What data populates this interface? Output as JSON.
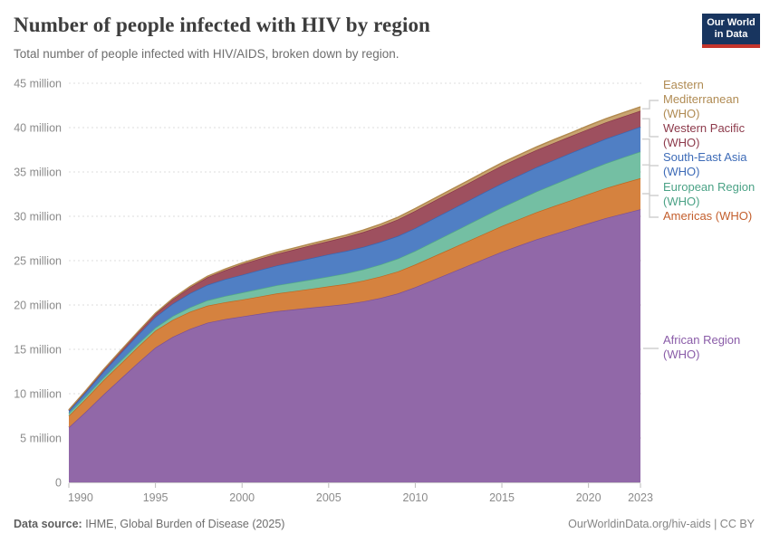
{
  "header": {
    "title": "Number of people infected with HIV by region",
    "subtitle": "Total number of people infected with HIV/AIDS, broken down by region.",
    "logo": {
      "text": "Our World\nin Data",
      "bg_color": "#18355f",
      "accent_color": "#c5352c"
    }
  },
  "footer": {
    "source_label": "Data source:",
    "source_text": " IHME, Global Burden of Disease (2025)",
    "right_text": "OurWorldinData.org/hiv-aids | CC BY"
  },
  "chart_data": {
    "type": "area",
    "stacked": true,
    "title": "Number of people infected with HIV by region",
    "xlabel": "",
    "ylabel": "",
    "ylim": [
      0,
      45
    ],
    "grid": "horizontal-dashed",
    "legend_position": "right",
    "x": [
      1990,
      1991,
      1992,
      1993,
      1994,
      1995,
      1996,
      1997,
      1998,
      1999,
      2000,
      2001,
      2002,
      2003,
      2004,
      2005,
      2006,
      2007,
      2008,
      2009,
      2010,
      2011,
      2012,
      2013,
      2014,
      2015,
      2016,
      2017,
      2018,
      2019,
      2020,
      2021,
      2022,
      2023
    ],
    "xticks": [
      1990,
      1995,
      2000,
      2005,
      2010,
      2015,
      2020,
      2023
    ],
    "yticks": [
      {
        "value": 0,
        "label": "0"
      },
      {
        "value": 5,
        "label": "5 million"
      },
      {
        "value": 10,
        "label": "10 million"
      },
      {
        "value": 15,
        "label": "15 million"
      },
      {
        "value": 20,
        "label": "20 million"
      },
      {
        "value": 25,
        "label": "25 million"
      },
      {
        "value": 30,
        "label": "30 million"
      },
      {
        "value": 35,
        "label": "35 million"
      },
      {
        "value": 40,
        "label": "40 million"
      },
      {
        "value": 45,
        "label": "45 million"
      }
    ],
    "unit": "million people",
    "series": [
      {
        "name": "African Region (WHO)",
        "label_lines": "African Region\n(WHO)",
        "fill": "#9168a8",
        "line": "#7b4f96",
        "text_color": "#8a5ca8",
        "values": [
          6.2,
          8.0,
          9.9,
          11.7,
          13.5,
          15.2,
          16.4,
          17.3,
          18.0,
          18.4,
          18.7,
          19.0,
          19.3,
          19.5,
          19.7,
          19.9,
          20.1,
          20.4,
          20.8,
          21.3,
          22.0,
          22.8,
          23.6,
          24.4,
          25.2,
          26.0,
          26.7,
          27.4,
          28.0,
          28.6,
          29.2,
          29.8,
          30.3,
          30.8
        ]
      },
      {
        "name": "Americas (WHO)",
        "label_lines": "Americas (WHO)",
        "fill": "#d5823f",
        "line": "#c2661d",
        "text_color": "#c35e2c",
        "values": [
          1.3,
          1.45,
          1.6,
          1.7,
          1.8,
          1.9,
          1.92,
          1.93,
          1.92,
          1.9,
          1.9,
          1.95,
          2.0,
          2.06,
          2.13,
          2.2,
          2.27,
          2.34,
          2.41,
          2.48,
          2.56,
          2.63,
          2.7,
          2.77,
          2.84,
          2.9,
          2.98,
          3.06,
          3.14,
          3.22,
          3.3,
          3.37,
          3.44,
          3.5
        ]
      },
      {
        "name": "European Region (WHO)",
        "label_lines": "European Region\n(WHO)",
        "fill": "#74bfa3",
        "line": "#52aa85",
        "text_color": "#4ba286",
        "values": [
          0.3,
          0.31,
          0.32,
          0.33,
          0.34,
          0.35,
          0.42,
          0.5,
          0.6,
          0.7,
          0.8,
          0.86,
          0.92,
          0.98,
          1.04,
          1.1,
          1.19,
          1.27,
          1.36,
          1.45,
          1.54,
          1.65,
          1.76,
          1.87,
          1.99,
          2.1,
          2.22,
          2.34,
          2.46,
          2.58,
          2.7,
          2.8,
          2.9,
          3.0
        ]
      },
      {
        "name": "South-East Asia (WHO)",
        "label_lines": "South-East Asia\n(WHO)",
        "fill": "#507fc4",
        "line": "#3766b3",
        "text_color": "#3d6bb7",
        "values": [
          0.25,
          0.45,
          0.65,
          0.85,
          1.0,
          1.2,
          1.4,
          1.6,
          1.75,
          1.9,
          2.0,
          2.12,
          2.22,
          2.32,
          2.41,
          2.5,
          2.52,
          2.53,
          2.54,
          2.55,
          2.56,
          2.6,
          2.63,
          2.65,
          2.68,
          2.7,
          2.72,
          2.73,
          2.74,
          2.75,
          2.75,
          2.77,
          2.78,
          2.8
        ]
      },
      {
        "name": "Western Pacific (WHO)",
        "label_lines": "Western Pacific\n(WHO)",
        "fill": "#9e505f",
        "line": "#8b3848",
        "text_color": "#8d3a4b",
        "values": [
          0.1,
          0.15,
          0.2,
          0.25,
          0.3,
          0.35,
          0.5,
          0.65,
          0.85,
          1.0,
          1.2,
          1.27,
          1.33,
          1.39,
          1.45,
          1.5,
          1.59,
          1.68,
          1.77,
          1.86,
          1.95,
          1.96,
          1.97,
          1.97,
          1.98,
          2.0,
          1.98,
          1.95,
          1.93,
          1.9,
          1.88,
          1.85,
          1.83,
          1.8
        ]
      },
      {
        "name": "Eastern Mediterranean (WHO)",
        "label_lines": "Eastern\nMediterranean\n(WHO)",
        "fill": "#c8a470",
        "line": "#b1894e",
        "text_color": "#b08b53",
        "values": [
          0.03,
          0.04,
          0.05,
          0.06,
          0.07,
          0.08,
          0.09,
          0.11,
          0.12,
          0.14,
          0.15,
          0.16,
          0.17,
          0.18,
          0.19,
          0.2,
          0.21,
          0.23,
          0.24,
          0.26,
          0.27,
          0.28,
          0.29,
          0.31,
          0.32,
          0.33,
          0.34,
          0.35,
          0.37,
          0.38,
          0.4,
          0.42,
          0.43,
          0.45
        ]
      }
    ]
  }
}
